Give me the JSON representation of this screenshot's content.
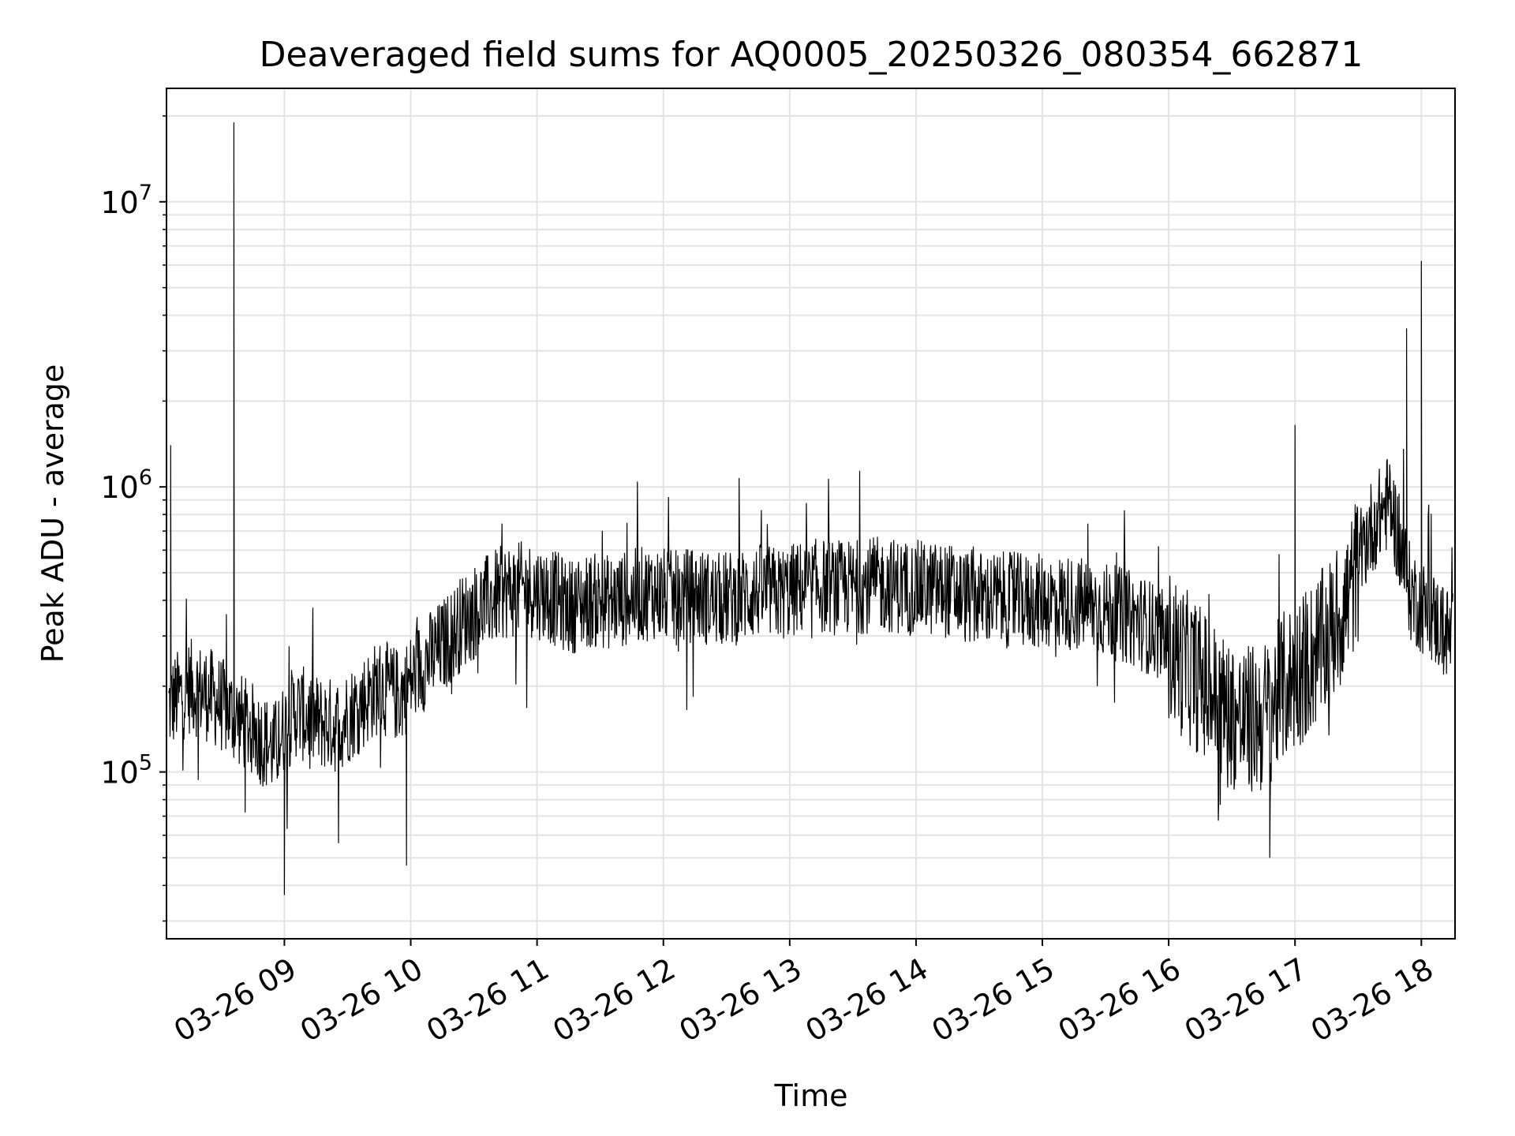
{
  "chart_data": {
    "type": "line",
    "title": "Deaveraged field sums for AQ0005_20250326_080354_662871",
    "xlabel": "Time",
    "ylabel": "Peak ADU - average",
    "yscale": "log",
    "ylim": [
      26000,
      25000000
    ],
    "xlim": [
      "03-26 08:04",
      "03-26 18:16"
    ],
    "grid": true,
    "x_ticks": [
      "03-26 09",
      "03-26 10",
      "03-26 11",
      "03-26 12",
      "03-26 13",
      "03-26 14",
      "03-26 15",
      "03-26 16",
      "03-26 17",
      "03-26 18"
    ],
    "y_ticks": [
      {
        "base": "10",
        "exp": "5",
        "value": 100000
      },
      {
        "base": "10",
        "exp": "6",
        "value": 1000000
      },
      {
        "base": "10",
        "exp": "7",
        "value": 10000000
      }
    ],
    "series": [
      {
        "name": "",
        "color": "#000000",
        "x": [
          "03-26 08:05",
          "03-26 08:15",
          "03-26 08:25",
          "03-26 08:35",
          "03-26 08:45",
          "03-26 08:55",
          "03-26 09:05",
          "03-26 09:15",
          "03-26 09:25",
          "03-26 09:35",
          "03-26 09:45",
          "03-26 09:55",
          "03-26 10:05",
          "03-26 10:15",
          "03-26 10:25",
          "03-26 10:35",
          "03-26 10:45",
          "03-26 10:55",
          "03-26 11:05",
          "03-26 11:15",
          "03-26 11:25",
          "03-26 11:35",
          "03-26 11:45",
          "03-26 11:55",
          "03-26 12:05",
          "03-26 12:15",
          "03-26 12:25",
          "03-26 12:35",
          "03-26 12:45",
          "03-26 12:55",
          "03-26 13:05",
          "03-26 13:15",
          "03-26 13:25",
          "03-26 13:35",
          "03-26 13:45",
          "03-26 13:55",
          "03-26 14:05",
          "03-26 14:15",
          "03-26 14:25",
          "03-26 14:35",
          "03-26 14:45",
          "03-26 14:55",
          "03-26 15:05",
          "03-26 15:15",
          "03-26 15:25",
          "03-26 15:35",
          "03-26 15:45",
          "03-26 15:55",
          "03-26 16:05",
          "03-26 16:15",
          "03-26 16:25",
          "03-26 16:35",
          "03-26 16:45",
          "03-26 16:55",
          "03-26 17:05",
          "03-26 17:15",
          "03-26 17:25",
          "03-26 17:35",
          "03-26 17:45",
          "03-26 17:55",
          "03-26 18:05",
          "03-26 18:15"
        ],
        "y": [
          170000,
          200000,
          185000,
          160000,
          140000,
          120000,
          165000,
          150000,
          145000,
          170000,
          200000,
          185000,
          235000,
          275000,
          340000,
          390000,
          430000,
          440000,
          420000,
          380000,
          400000,
          395000,
          410000,
          430000,
          405000,
          420000,
          400000,
          410000,
          430000,
          420000,
          440000,
          450000,
          440000,
          450000,
          455000,
          445000,
          440000,
          435000,
          410000,
          405000,
          400000,
          395000,
          400000,
          390000,
          380000,
          360000,
          340000,
          310000,
          250000,
          210000,
          170000,
          150000,
          155000,
          200000,
          240000,
          290000,
          400000,
          700000,
          900000,
          420000,
          350000,
          290000
        ],
        "peaks": [
          {
            "x": "03-26 08:36",
            "y": 19000000
          },
          {
            "x": "03-26 08:06",
            "y": 1400000
          },
          {
            "x": "03-26 09:00",
            "y": 37000
          },
          {
            "x": "03-26 09:58",
            "y": 47000
          },
          {
            "x": "03-26 16:48",
            "y": 50000
          },
          {
            "x": "03-26 17:00",
            "y": 1650000
          },
          {
            "x": "03-26 17:53",
            "y": 3600000
          },
          {
            "x": "03-26 18:00",
            "y": 6200000
          }
        ]
      }
    ]
  }
}
